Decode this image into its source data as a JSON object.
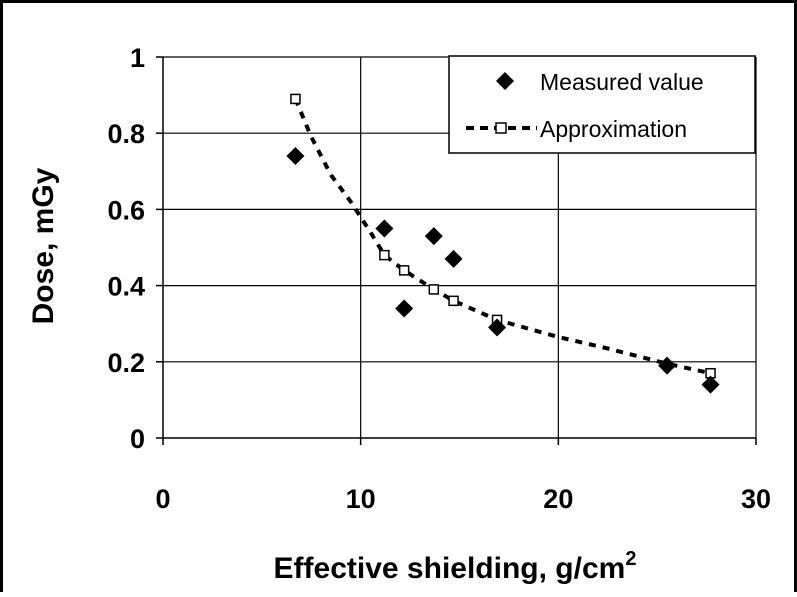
{
  "chart_data": {
    "type": "scatter",
    "xlabel": "Effective shielding, g/cm",
    "xlabel_superscript": "2",
    "ylabel": "Dose, mGy",
    "xlim": [
      0,
      30
    ],
    "ylim": [
      0,
      1
    ],
    "x_ticks": [
      0,
      10,
      20,
      30
    ],
    "x_tick_labels": [
      "0",
      "10",
      "20",
      "30"
    ],
    "y_ticks": [
      0,
      0.2,
      0.4,
      0.6,
      0.8,
      1
    ],
    "y_tick_labels": [
      "0",
      "0.2",
      "0.4",
      "0.6",
      "0.8",
      "1"
    ],
    "grid": true,
    "legend_position": "top-right",
    "series": [
      {
        "name": "Measured value",
        "marker": "diamond",
        "color": "#000000",
        "points": [
          {
            "x": 6.7,
            "y": 0.74
          },
          {
            "x": 11.2,
            "y": 0.55
          },
          {
            "x": 12.2,
            "y": 0.34
          },
          {
            "x": 13.7,
            "y": 0.53
          },
          {
            "x": 14.7,
            "y": 0.47
          },
          {
            "x": 16.9,
            "y": 0.29
          },
          {
            "x": 25.5,
            "y": 0.19
          },
          {
            "x": 27.7,
            "y": 0.14
          }
        ]
      },
      {
        "name": "Approximation",
        "marker": "square-open",
        "line_style": "dashed",
        "color": "#000000",
        "points": [
          {
            "x": 6.7,
            "y": 0.89
          },
          {
            "x": 11.2,
            "y": 0.48
          },
          {
            "x": 12.2,
            "y": 0.44
          },
          {
            "x": 13.7,
            "y": 0.39
          },
          {
            "x": 14.7,
            "y": 0.36
          },
          {
            "x": 16.9,
            "y": 0.31
          },
          {
            "x": 27.7,
            "y": 0.17
          }
        ],
        "curve": [
          [
            6.7,
            0.89
          ],
          [
            7.5,
            0.79
          ],
          [
            8.5,
            0.69
          ],
          [
            9.5,
            0.62
          ],
          [
            10.5,
            0.54
          ],
          [
            11.2,
            0.48
          ],
          [
            12.2,
            0.44
          ],
          [
            13.7,
            0.39
          ],
          [
            14.7,
            0.36
          ],
          [
            16.9,
            0.31
          ],
          [
            20.0,
            0.265
          ],
          [
            22.5,
            0.235
          ],
          [
            25.5,
            0.195
          ],
          [
            27.7,
            0.17
          ]
        ]
      }
    ]
  }
}
